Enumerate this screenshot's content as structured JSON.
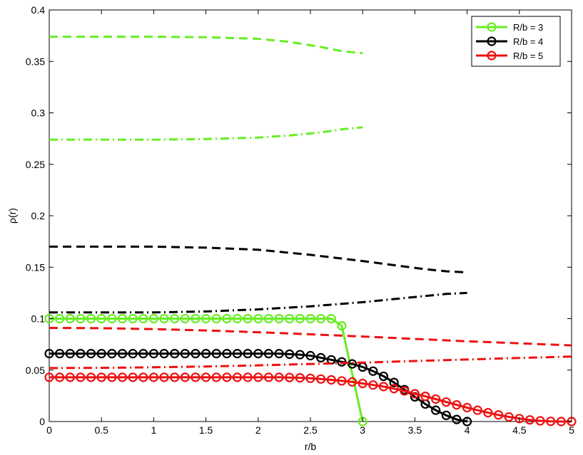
{
  "chart_data": {
    "type": "line",
    "xlabel": "r/b",
    "ylabel": "ρ(r)",
    "xlim": [
      0,
      5
    ],
    "ylim": [
      0,
      0.4
    ],
    "x_ticks": [
      "0",
      "0.5",
      "1",
      "1.5",
      "2",
      "2.5",
      "3",
      "3.5",
      "4",
      "4.5",
      "5"
    ],
    "y_ticks": [
      "0",
      "0.05",
      "0.1",
      "0.15",
      "0.2",
      "0.25",
      "0.3",
      "0.35",
      "0.4"
    ],
    "grid": false,
    "legend_position": "top-right",
    "legend": [
      {
        "label": "R/b = 3",
        "color": "#66ee22"
      },
      {
        "label": "R/b = 4",
        "color": "#000000"
      },
      {
        "label": "R/b = 5",
        "color": "#ee1111"
      }
    ],
    "series": [
      {
        "name": "R/b = 3",
        "color": "#66ee22",
        "style": "solid-circles",
        "x": [
          0,
          0.1,
          0.2,
          0.3,
          0.4,
          0.5,
          0.6,
          0.7,
          0.8,
          0.9,
          1.0,
          1.1,
          1.2,
          1.3,
          1.4,
          1.5,
          1.6,
          1.7,
          1.8,
          1.9,
          2.0,
          2.1,
          2.2,
          2.3,
          2.4,
          2.5,
          2.6,
          2.7,
          2.8,
          3.0
        ],
        "y": [
          0.1,
          0.1,
          0.1,
          0.1,
          0.1,
          0.1,
          0.1,
          0.1,
          0.1,
          0.1,
          0.1,
          0.1,
          0.1,
          0.1,
          0.1,
          0.1,
          0.1,
          0.1,
          0.1,
          0.1,
          0.1,
          0.1,
          0.1,
          0.1,
          0.1,
          0.1,
          0.1,
          0.1,
          0.093,
          0
        ]
      },
      {
        "name": "",
        "color": "#66ee22",
        "style": "dashed",
        "x": [
          0,
          0.5,
          1.0,
          1.5,
          2.0,
          2.3,
          2.6,
          2.8,
          3.0
        ],
        "y": [
          0.374,
          0.374,
          0.374,
          0.3735,
          0.372,
          0.369,
          0.364,
          0.36,
          0.358
        ]
      },
      {
        "name": "",
        "color": "#66ee22",
        "style": "dashdot",
        "x": [
          0,
          0.5,
          1.0,
          1.5,
          2.0,
          2.3,
          2.6,
          2.8,
          3.0
        ],
        "y": [
          0.274,
          0.274,
          0.274,
          0.2745,
          0.276,
          0.278,
          0.281,
          0.284,
          0.286
        ]
      },
      {
        "name": "R/b = 4",
        "color": "#000000",
        "style": "solid-circles",
        "x": [
          0,
          0.1,
          0.2,
          0.3,
          0.4,
          0.5,
          0.6,
          0.7,
          0.8,
          0.9,
          1.0,
          1.1,
          1.2,
          1.3,
          1.4,
          1.5,
          1.6,
          1.7,
          1.8,
          1.9,
          2.0,
          2.1,
          2.2,
          2.3,
          2.4,
          2.5,
          2.6,
          2.7,
          2.8,
          2.9,
          3.0,
          3.1,
          3.2,
          3.3,
          3.4,
          3.5,
          3.6,
          3.7,
          3.8,
          3.9,
          4.0
        ],
        "y": [
          0.066,
          0.066,
          0.066,
          0.066,
          0.066,
          0.066,
          0.066,
          0.066,
          0.066,
          0.066,
          0.066,
          0.066,
          0.066,
          0.066,
          0.066,
          0.066,
          0.066,
          0.066,
          0.066,
          0.066,
          0.066,
          0.066,
          0.066,
          0.0655,
          0.065,
          0.064,
          0.062,
          0.06,
          0.058,
          0.056,
          0.053,
          0.049,
          0.044,
          0.038,
          0.031,
          0.024,
          0.017,
          0.011,
          0.006,
          0.002,
          0
        ]
      },
      {
        "name": "",
        "color": "#000000",
        "style": "dashed",
        "x": [
          0,
          0.5,
          1.0,
          1.5,
          2.0,
          2.5,
          3.0,
          3.3,
          3.6,
          3.8,
          4.0
        ],
        "y": [
          0.17,
          0.17,
          0.17,
          0.169,
          0.167,
          0.162,
          0.156,
          0.152,
          0.148,
          0.146,
          0.145
        ]
      },
      {
        "name": "",
        "color": "#000000",
        "style": "dashdot",
        "x": [
          0,
          0.5,
          1.0,
          1.5,
          2.0,
          2.5,
          3.0,
          3.3,
          3.6,
          3.8,
          4.0
        ],
        "y": [
          0.106,
          0.106,
          0.106,
          0.107,
          0.109,
          0.112,
          0.116,
          0.119,
          0.122,
          0.124,
          0.125
        ]
      },
      {
        "name": "R/b = 5",
        "color": "#ee1111",
        "style": "solid-circles",
        "x": [
          0,
          0.1,
          0.2,
          0.3,
          0.4,
          0.5,
          0.6,
          0.7,
          0.8,
          0.9,
          1.0,
          1.1,
          1.2,
          1.3,
          1.4,
          1.5,
          1.6,
          1.7,
          1.8,
          1.9,
          2.0,
          2.1,
          2.2,
          2.3,
          2.4,
          2.5,
          2.6,
          2.7,
          2.8,
          2.9,
          3.0,
          3.1,
          3.2,
          3.3,
          3.4,
          3.5,
          3.6,
          3.7,
          3.8,
          3.9,
          4.0,
          4.1,
          4.2,
          4.3,
          4.4,
          4.5,
          4.6,
          4.7,
          4.8,
          4.9,
          5.0
        ],
        "y": [
          0.043,
          0.043,
          0.043,
          0.043,
          0.043,
          0.043,
          0.043,
          0.043,
          0.043,
          0.043,
          0.043,
          0.043,
          0.043,
          0.043,
          0.043,
          0.043,
          0.043,
          0.043,
          0.043,
          0.043,
          0.043,
          0.043,
          0.043,
          0.0428,
          0.0425,
          0.042,
          0.0413,
          0.0405,
          0.0395,
          0.0385,
          0.037,
          0.0355,
          0.034,
          0.032,
          0.0297,
          0.027,
          0.0245,
          0.0218,
          0.019,
          0.0162,
          0.0135,
          0.011,
          0.0086,
          0.0064,
          0.0045,
          0.0029,
          0.0016,
          0.0007,
          0.0002,
          0,
          0
        ]
      },
      {
        "name": "",
        "color": "#ee1111",
        "style": "dashed",
        "x": [
          0,
          0.5,
          1.0,
          1.5,
          2.0,
          2.5,
          3.0,
          3.5,
          4.0,
          4.5,
          5.0
        ],
        "y": [
          0.091,
          0.0907,
          0.0898,
          0.0885,
          0.0868,
          0.0848,
          0.0826,
          0.0803,
          0.078,
          0.076,
          0.074
        ]
      },
      {
        "name": "",
        "color": "#ee1111",
        "style": "dashdot",
        "x": [
          0,
          0.5,
          1.0,
          1.5,
          2.0,
          2.5,
          3.0,
          3.5,
          4.0,
          4.5,
          5.0
        ],
        "y": [
          0.052,
          0.0522,
          0.0527,
          0.0535,
          0.0546,
          0.0559,
          0.0573,
          0.0588,
          0.0603,
          0.0618,
          0.0632
        ]
      }
    ]
  }
}
